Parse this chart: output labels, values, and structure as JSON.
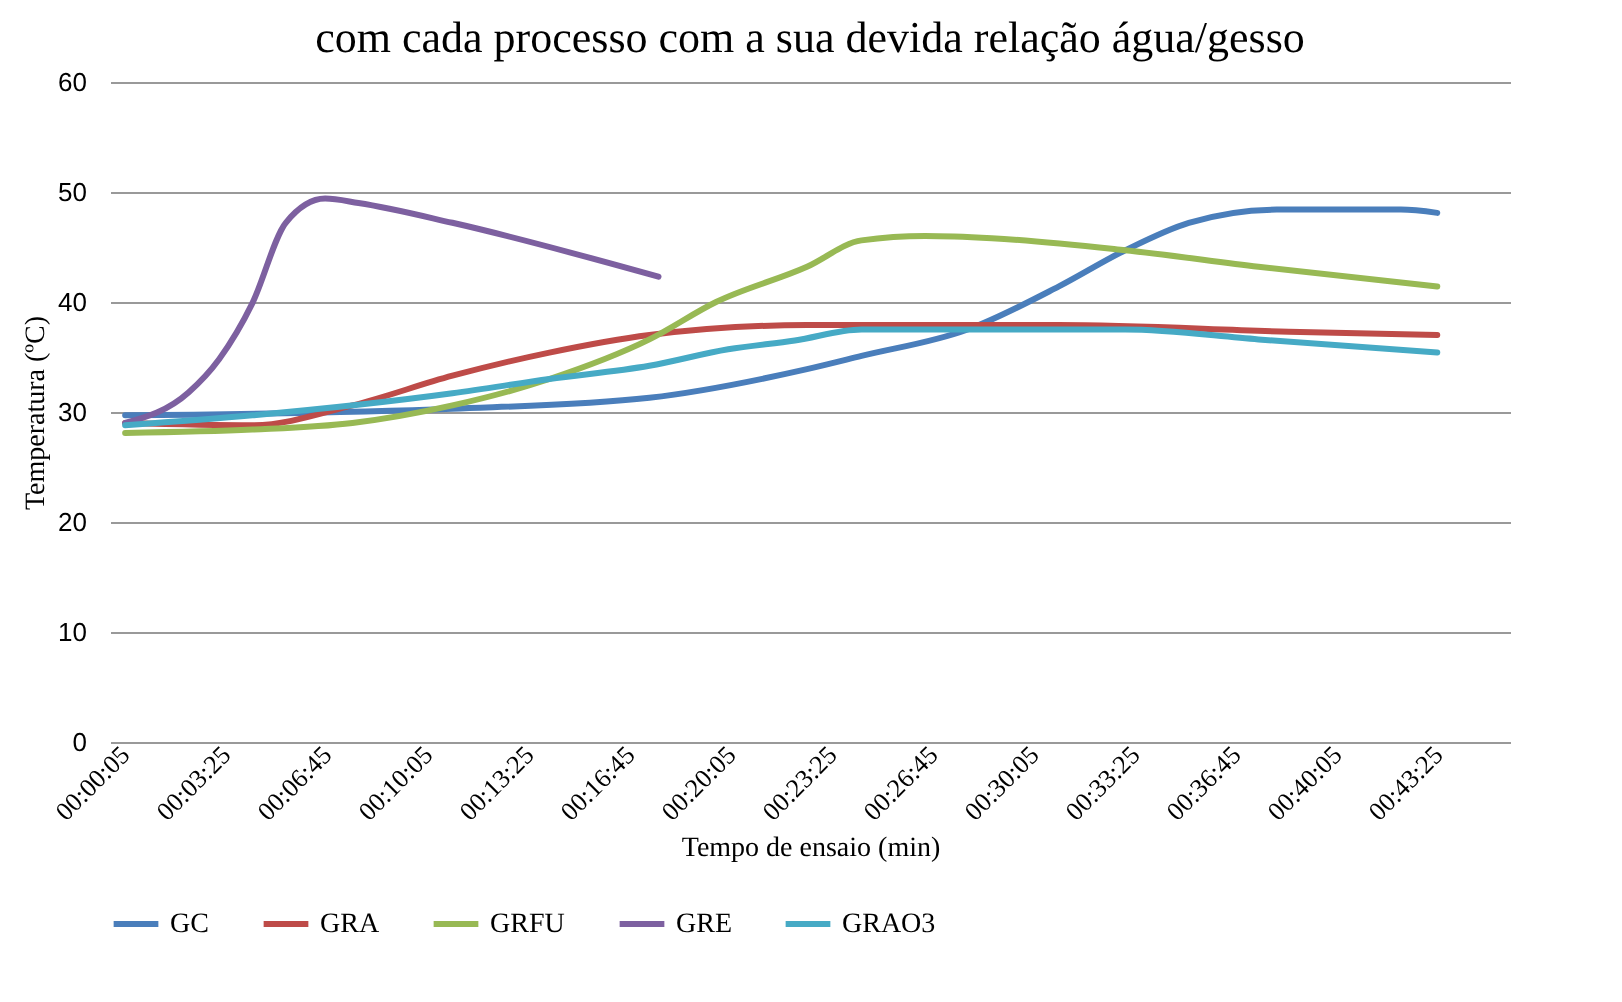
{
  "chart_data": {
    "type": "line",
    "title": "com cada processo com a sua devida relação água/gesso",
    "xlabel": "Tempo de ensaio (min)",
    "ylabel": "Temperatura (ºC)",
    "xlim": [
      -0.4,
      45.8
    ],
    "ylim": [
      0,
      60
    ],
    "xticks": [
      {
        "value": 0.083,
        "label": "00:00:05"
      },
      {
        "value": 3.417,
        "label": "00:03:25"
      },
      {
        "value": 6.75,
        "label": "00:06:45"
      },
      {
        "value": 10.083,
        "label": "00:10:05"
      },
      {
        "value": 13.417,
        "label": "00:13:25"
      },
      {
        "value": 16.75,
        "label": "00:16:45"
      },
      {
        "value": 20.083,
        "label": "00:20:05"
      },
      {
        "value": 23.417,
        "label": "00:23:25"
      },
      {
        "value": 26.75,
        "label": "00:26:45"
      },
      {
        "value": 30.083,
        "label": "00:30:05"
      },
      {
        "value": 33.417,
        "label": "00:33:25"
      },
      {
        "value": 36.75,
        "label": "00:36:45"
      },
      {
        "value": 40.083,
        "label": "00:40:05"
      },
      {
        "value": 43.417,
        "label": "00:43:25"
      }
    ],
    "yticks": [
      0,
      10,
      20,
      30,
      40,
      50,
      60
    ],
    "grid": "y",
    "legend": "bottom",
    "marker": "none",
    "line_style": "solid",
    "series": [
      {
        "name": "GC",
        "color": "#4a7ebb",
        "x": [
          0.1,
          10.9,
          17.4,
          22.6,
          24.4,
          27.9,
          30.9,
          33.1,
          35.2,
          38.1,
          42.2,
          43.4
        ],
        "values": [
          29.7,
          30.3,
          31.3,
          33.9,
          35.1,
          37.5,
          41.4,
          44.7,
          47.2,
          48.4,
          48.4,
          48.1
        ]
      },
      {
        "name": "GRA",
        "color": "#be4b48",
        "x": [
          0.1,
          4.3,
          7.6,
          10.9,
          14.1,
          17.4,
          22.6,
          30.9,
          38.5,
          43.4
        ],
        "values": [
          29.0,
          28.8,
          30.6,
          33.3,
          35.4,
          37.0,
          37.9,
          37.9,
          37.3,
          37.0
        ]
      },
      {
        "name": "GRFU",
        "color": "#98b954",
        "x": [
          0.1,
          4.3,
          7.6,
          10.9,
          14.1,
          17.4,
          19.6,
          22.6,
          24.4,
          26.5,
          28.7,
          33.1,
          37.5,
          43.4
        ],
        "values": [
          28.1,
          28.4,
          29.0,
          30.6,
          33.0,
          36.6,
          40.0,
          43.2,
          45.6,
          46.0,
          45.8,
          44.7,
          43.2,
          41.4
        ]
      },
      {
        "name": "GRE",
        "color": "#7d60a0",
        "x": [
          0.1,
          2.2,
          3.2,
          4.3,
          5.4,
          6.7,
          7.8,
          10.9,
          17.7
        ],
        "values": [
          29.0,
          31.8,
          34.8,
          39.9,
          47.2,
          49.4,
          49.0,
          47.2,
          42.3
        ]
      },
      {
        "name": "GRAO3",
        "color": "#46aac5",
        "x": [
          0.1,
          4.3,
          10.9,
          14.1,
          17.4,
          20.0,
          22.2,
          24.4,
          33.1,
          37.5,
          43.4
        ],
        "values": [
          28.8,
          29.7,
          31.7,
          33.0,
          34.2,
          35.7,
          36.5,
          37.5,
          37.5,
          36.6,
          35.4
        ]
      }
    ]
  }
}
